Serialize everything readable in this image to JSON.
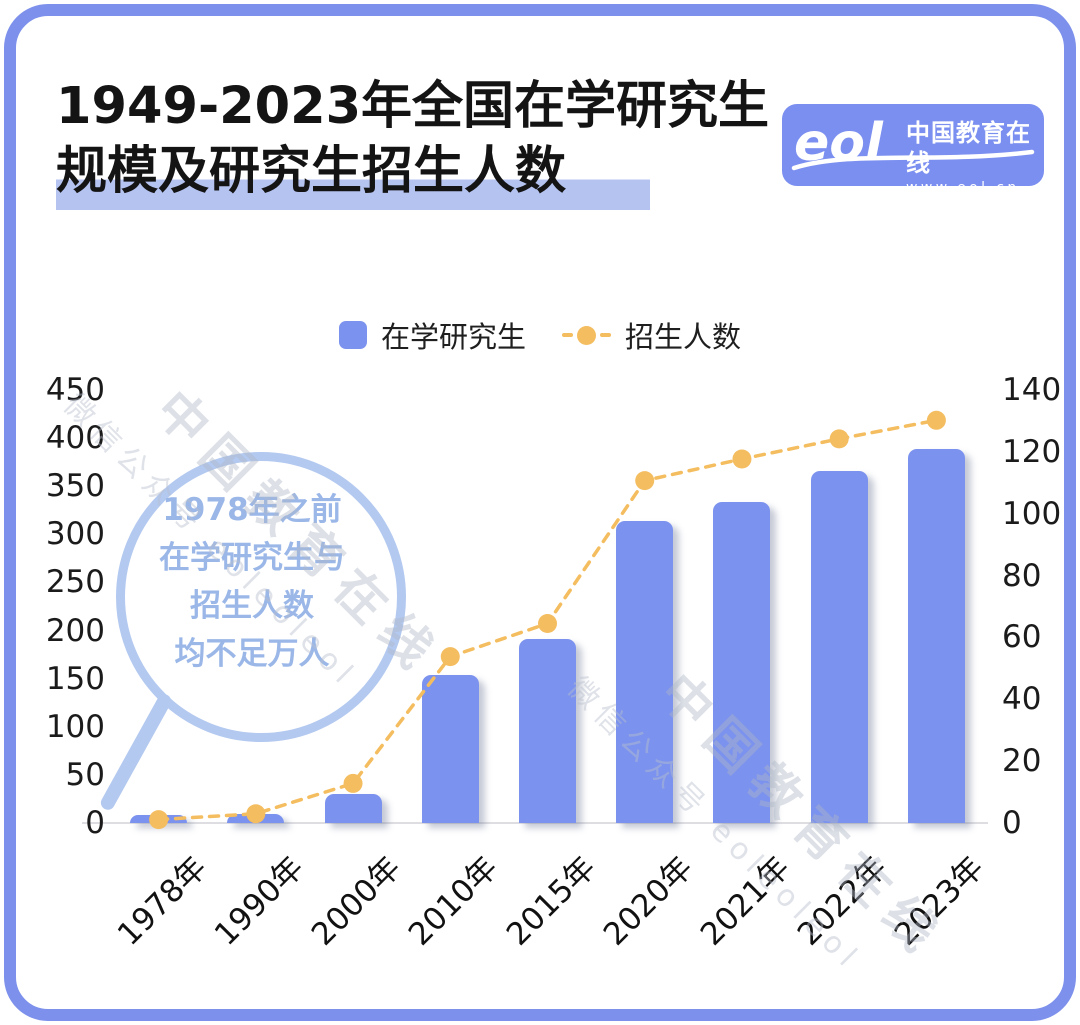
{
  "page": {
    "background": "#ffffff",
    "card_border_color": "#7c90ec"
  },
  "header": {
    "title_line1": "1949-2023年全国在学研究生",
    "title_line2": "规模及研究生招生人数",
    "title_highlight_color": "#b5c3f1",
    "logo": {
      "brand": "eol",
      "name": "中国教育在线",
      "url": "www.eol.cn",
      "bg_color": "#7b8ff0"
    }
  },
  "annotation": {
    "lines": [
      "1978年之前",
      "在学研究生与",
      "招生人数",
      "均不足万人"
    ],
    "text_color": "#9ab7e8",
    "ring_color": "#b3c9f0"
  },
  "watermarks": [
    {
      "line1": "中国教育在线",
      "line2": "微信公众号 eoleoleol"
    },
    {
      "line1": "中国教育在线",
      "line2": "微信公众号 eoleoleol"
    }
  ],
  "chart_data": {
    "type": "combo-bar-line",
    "categories": [
      "1978年",
      "1990年",
      "2000年",
      "2010年",
      "2015年",
      "2020年",
      "2021年",
      "2022年",
      "2023年"
    ],
    "series": [
      {
        "name": "在学研究生",
        "type": "bar",
        "axis": "left",
        "color": "#7b92ee",
        "values": [
          1.1,
          9.3,
          30.1,
          153.8,
          191.1,
          314.0,
          333.2,
          365.4,
          388.3
        ]
      },
      {
        "name": "招生人数",
        "type": "line",
        "axis": "right",
        "color": "#f4bd5f",
        "line_style": "dashed",
        "values": [
          1.1,
          3.0,
          12.8,
          53.8,
          64.5,
          110.7,
          117.7,
          124.2,
          130.2
        ]
      }
    ],
    "left_axis": {
      "min": 0,
      "max": 450,
      "step": 50,
      "ticks": [
        450,
        400,
        350,
        300,
        250,
        200,
        150,
        100,
        50,
        0
      ]
    },
    "right_axis": {
      "min": 0,
      "max": 140,
      "step": 20,
      "ticks": [
        140,
        120,
        100,
        80,
        60,
        40,
        20,
        0
      ]
    },
    "grid": false,
    "legend_position": "top-center"
  }
}
